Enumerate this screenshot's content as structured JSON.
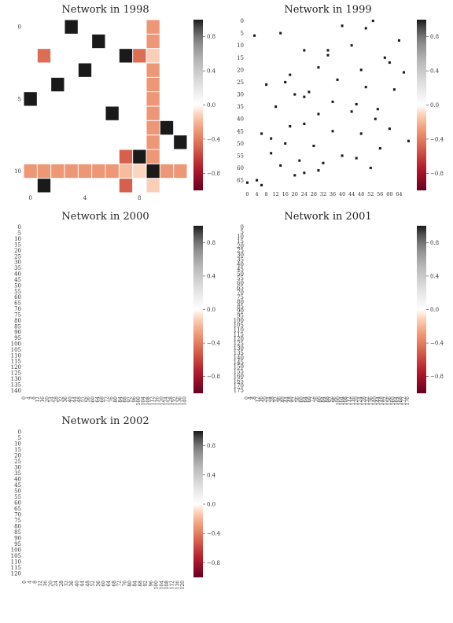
{
  "chart_data": [
    {
      "type": "heatmap",
      "title": "Network in 1998",
      "n": 12,
      "xticks": [
        0,
        4,
        8
      ],
      "yticks": [
        0,
        5,
        10
      ],
      "colorbar_ticks": [
        0.8,
        0.4,
        0.0,
        -0.4,
        -0.8
      ],
      "colorbar_labels": [
        "0.8",
        "0.4",
        "0.0",
        "−0.4",
        "−0.8"
      ],
      "vmin": -1,
      "vmax": 1,
      "cells": [
        [
          0,
          3,
          1.0
        ],
        [
          1,
          5,
          1.0
        ],
        [
          2,
          1,
          -0.45
        ],
        [
          2,
          7,
          1.0
        ],
        [
          2,
          8,
          -0.45
        ],
        [
          3,
          4,
          1.0
        ],
        [
          4,
          2,
          1.0
        ],
        [
          5,
          0,
          1.0
        ],
        [
          6,
          6,
          1.0
        ],
        [
          7,
          10,
          1.0
        ],
        [
          8,
          11,
          1.0
        ],
        [
          9,
          8,
          1.0
        ],
        [
          9,
          7,
          -0.5
        ],
        [
          0,
          9,
          -0.3
        ],
        [
          1,
          9,
          -0.3
        ],
        [
          2,
          9,
          -0.12
        ],
        [
          3,
          9,
          -0.3
        ],
        [
          4,
          9,
          -0.3
        ],
        [
          5,
          9,
          -0.3
        ],
        [
          6,
          9,
          -0.3
        ],
        [
          7,
          9,
          -0.3
        ],
        [
          8,
          9,
          -0.3
        ],
        [
          9,
          9,
          -0.3
        ],
        [
          10,
          0,
          -0.3
        ],
        [
          10,
          1,
          -0.3
        ],
        [
          10,
          2,
          -0.3
        ],
        [
          10,
          3,
          -0.3
        ],
        [
          10,
          4,
          -0.3
        ],
        [
          10,
          5,
          -0.3
        ],
        [
          10,
          6,
          -0.3
        ],
        [
          10,
          7,
          -0.18
        ],
        [
          10,
          8,
          -0.1
        ],
        [
          10,
          9,
          1.0
        ],
        [
          10,
          10,
          -0.3
        ],
        [
          10,
          11,
          -0.3
        ],
        [
          11,
          1,
          1.0
        ],
        [
          11,
          7,
          -0.5
        ],
        [
          11,
          9,
          -0.12
        ]
      ]
    },
    {
      "type": "heatmap",
      "title": "Network in 1999",
      "n": 69,
      "xticks": [
        0,
        4,
        8,
        12,
        16,
        20,
        24,
        28,
        32,
        36,
        40,
        44,
        48,
        52,
        56,
        60,
        64
      ],
      "yticks": [
        0,
        5,
        10,
        15,
        20,
        25,
        30,
        35,
        40,
        45,
        50,
        55,
        60,
        65
      ],
      "colorbar_ticks": [
        0.8,
        0.4,
        0.0,
        -0.4,
        -0.8
      ],
      "colorbar_labels": [
        "0.8",
        "0.4",
        "0.0",
        "−0.4",
        "−0.8"
      ],
      "vmin": -1,
      "vmax": 1,
      "cells": [
        [
          0,
          53,
          1.0
        ],
        [
          2,
          40,
          1.0
        ],
        [
          3,
          50,
          1.0
        ],
        [
          5,
          14,
          1.0
        ],
        [
          6,
          3,
          1.0
        ],
        [
          8,
          64,
          1.0
        ],
        [
          10,
          44,
          1.0
        ],
        [
          12,
          24,
          1.0
        ],
        [
          14,
          34,
          1.0
        ],
        [
          15,
          58,
          1.0
        ],
        [
          17,
          60,
          1.0
        ],
        [
          19,
          30,
          1.0
        ],
        [
          21,
          66,
          1.0
        ],
        [
          22,
          18,
          1.0
        ],
        [
          24,
          38,
          1.0
        ],
        [
          26,
          8,
          1.0
        ],
        [
          27,
          50,
          1.0
        ],
        [
          28,
          62,
          1.0
        ],
        [
          29,
          26,
          1.0
        ],
        [
          30,
          20,
          1.0
        ],
        [
          31,
          24,
          1.0
        ],
        [
          33,
          36,
          1.0
        ],
        [
          34,
          46,
          1.0
        ],
        [
          35,
          12,
          1.0
        ],
        [
          36,
          55,
          1.0
        ],
        [
          37,
          44,
          1.0
        ],
        [
          38,
          30,
          1.0
        ],
        [
          40,
          54,
          1.0
        ],
        [
          42,
          24,
          1.0
        ],
        [
          43,
          18,
          1.0
        ],
        [
          45,
          36,
          1.0
        ],
        [
          46,
          6,
          1.0
        ],
        [
          46,
          48,
          1.0
        ],
        [
          48,
          10,
          1.0
        ],
        [
          49,
          68,
          1.0
        ],
        [
          50,
          16,
          1.0
        ],
        [
          51,
          28,
          1.0
        ],
        [
          52,
          56,
          1.0
        ],
        [
          54,
          10,
          1.0
        ],
        [
          55,
          40,
          1.0
        ],
        [
          56,
          46,
          1.0
        ],
        [
          58,
          32,
          1.0
        ],
        [
          59,
          14,
          1.0
        ],
        [
          60,
          52,
          1.0
        ],
        [
          61,
          30,
          1.0
        ],
        [
          62,
          24,
          1.0
        ],
        [
          63,
          20,
          1.0
        ],
        [
          65,
          4,
          1.0
        ],
        [
          66,
          0,
          1.0
        ],
        [
          67,
          6,
          1.0
        ],
        [
          20,
          48,
          1.0
        ],
        [
          25,
          16,
          1.0
        ],
        [
          44,
          60,
          1.0
        ],
        [
          57,
          22,
          1.0
        ],
        [
          12,
          34,
          1.0
        ]
      ]
    },
    {
      "type": "heatmap",
      "title": "Network in 2000",
      "n": 143,
      "xticks": [
        0,
        4,
        8,
        12,
        16,
        20,
        24,
        28,
        32,
        36,
        40,
        44,
        48,
        52,
        56,
        60,
        64,
        68,
        72,
        76,
        80,
        84,
        88,
        92,
        96,
        100,
        104,
        108,
        112,
        116,
        120,
        124,
        128,
        132,
        136,
        140
      ],
      "yticks": [
        0,
        5,
        10,
        15,
        20,
        25,
        30,
        35,
        40,
        45,
        50,
        55,
        60,
        65,
        70,
        75,
        80,
        85,
        90,
        95,
        100,
        105,
        110,
        115,
        120,
        125,
        130,
        135,
        140
      ],
      "colorbar_ticks": [
        0.8,
        0.4,
        0.0,
        -0.4,
        -0.8
      ],
      "colorbar_labels": [
        "0.8",
        "0.4",
        "0.0",
        "−0.4",
        "−0.8"
      ],
      "vmin": -1,
      "vmax": 1,
      "cells": []
    },
    {
      "type": "heatmap",
      "title": "Network in 2001",
      "n": 179,
      "xticks": [
        0,
        4,
        8,
        12,
        16,
        20,
        24,
        28,
        32,
        36,
        40,
        44,
        48,
        52,
        56,
        60,
        64,
        68,
        72,
        76,
        80,
        84,
        88,
        92,
        96,
        100,
        104,
        108,
        112,
        116,
        120,
        124,
        128,
        132,
        136,
        140,
        144,
        148,
        152,
        156,
        160,
        164,
        168,
        172,
        176
      ],
      "yticks": [
        0,
        5,
        10,
        15,
        20,
        25,
        30,
        35,
        40,
        45,
        50,
        55,
        60,
        65,
        70,
        75,
        80,
        85,
        90,
        95,
        100,
        105,
        110,
        115,
        120,
        125,
        130,
        135,
        140,
        145,
        150,
        155,
        160,
        165,
        170,
        175
      ],
      "colorbar_ticks": [
        0.8,
        0.4,
        0.0,
        -0.4,
        -0.8
      ],
      "colorbar_labels": [
        "0.8",
        "0.4",
        "0.0",
        "−0.4",
        "−0.8"
      ],
      "vmin": -1,
      "vmax": 1,
      "cells": []
    },
    {
      "type": "heatmap",
      "title": "Network in 2002",
      "n": 124,
      "xticks": [
        0,
        4,
        8,
        12,
        16,
        20,
        24,
        28,
        32,
        36,
        40,
        44,
        48,
        52,
        56,
        60,
        64,
        68,
        72,
        76,
        80,
        84,
        88,
        92,
        96,
        100,
        104,
        108,
        112,
        116,
        120
      ],
      "yticks": [
        0,
        5,
        10,
        15,
        20,
        25,
        30,
        35,
        40,
        45,
        50,
        55,
        60,
        65,
        70,
        75,
        80,
        85,
        90,
        95,
        100,
        105,
        110,
        115,
        120
      ],
      "colorbar_ticks": [
        0.8,
        0.4,
        0.0,
        -0.4,
        -0.8
      ],
      "colorbar_labels": [
        "0.8",
        "0.4",
        "0.0",
        "−0.4",
        "−0.8"
      ],
      "vmin": -1,
      "vmax": 1,
      "cells": []
    }
  ]
}
